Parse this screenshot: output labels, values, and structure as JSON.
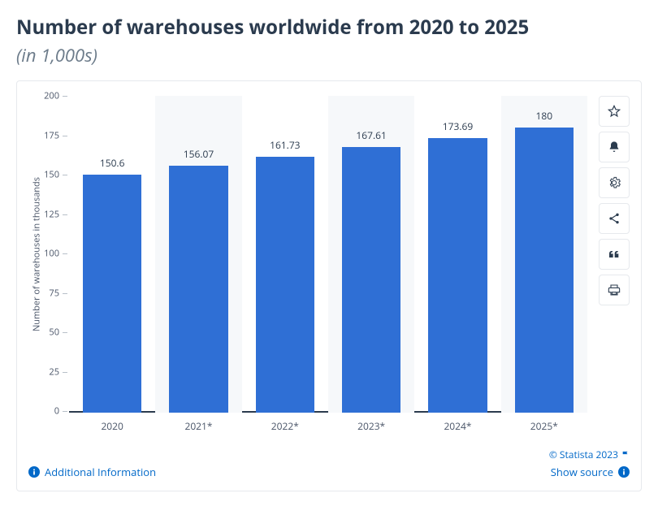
{
  "title": "Number of warehouses worldwide from 2020 to 2025",
  "subtitle": "(in 1,000s)",
  "footer": {
    "additional_info": "Additional Information",
    "copyright": "© Statista 2023",
    "show_source": "Show source"
  },
  "side_icons": [
    {
      "name": "star-icon"
    },
    {
      "name": "bell-icon"
    },
    {
      "name": "gear-icon"
    },
    {
      "name": "share-icon"
    },
    {
      "name": "quote-icon"
    },
    {
      "name": "print-icon"
    }
  ],
  "chart": {
    "type": "bar",
    "y_axis_label": "Number of warehouses in thousands",
    "label_fontsize": 11,
    "value_fontsize": 12,
    "categories": [
      "2020",
      "2021*",
      "2022*",
      "2023*",
      "2024*",
      "2025*"
    ],
    "values": [
      150.6,
      156.07,
      161.73,
      167.61,
      173.69,
      180
    ],
    "value_labels": [
      "150.6",
      "156.07",
      "161.73",
      "167.61",
      "173.69",
      "180"
    ],
    "bar_color": "#2f6fd5",
    "alt_band_color": "#f6f8fa",
    "background_color": "#ffffff",
    "axis_line_color": "#2b3b4e",
    "tick_color": "#b8c0c9",
    "text_color": "#4a5568",
    "ylim": [
      0,
      200
    ],
    "ytick_step": 25,
    "bar_width": 0.68
  },
  "colors": {
    "link": "#0068c8",
    "heading": "#2b3b4e",
    "subheading": "#6c7b8a",
    "border": "#e6e9ed"
  }
}
